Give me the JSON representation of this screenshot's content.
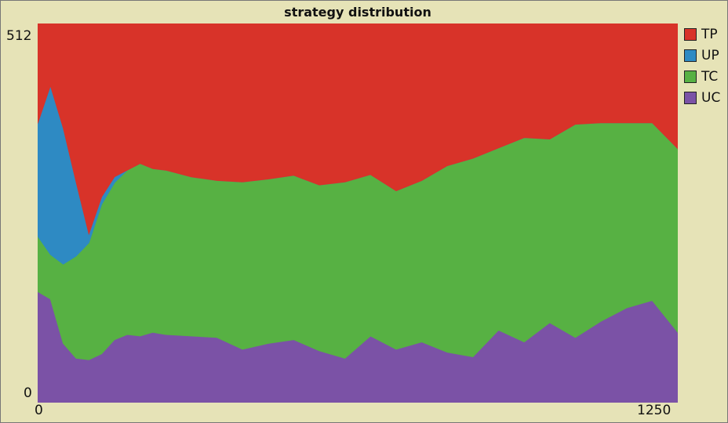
{
  "chart_data": {
    "type": "area",
    "stacked": true,
    "title": "strategy distribution",
    "xlabel": "",
    "ylabel": "",
    "xlim": [
      0,
      1250
    ],
    "ylim": [
      0,
      512
    ],
    "x_tick_labels": [
      "0",
      "1250"
    ],
    "y_tick_labels": [
      "0",
      "512"
    ],
    "legend_position": "right",
    "x": [
      0,
      25,
      50,
      75,
      100,
      125,
      150,
      175,
      200,
      225,
      250,
      300,
      350,
      400,
      450,
      500,
      550,
      600,
      650,
      700,
      750,
      800,
      850,
      900,
      950,
      1000,
      1050,
      1100,
      1150,
      1200,
      1250
    ],
    "series": [
      {
        "name": "UC",
        "color": "#7b52a6",
        "values": [
          150,
          140,
          80,
          60,
          58,
          66,
          85,
          92,
          90,
          95,
          92,
          90,
          88,
          72,
          80,
          85,
          70,
          60,
          90,
          72,
          82,
          68,
          62,
          98,
          82,
          108,
          88,
          110,
          128,
          138,
          95
        ]
      },
      {
        "name": "TC",
        "color": "#57b143",
        "values": [
          75,
          60,
          107,
          138,
          158,
          202,
          212,
          222,
          233,
          221,
          222,
          215,
          212,
          226,
          222,
          222,
          224,
          238,
          218,
          214,
          218,
          252,
          268,
          246,
          276,
          248,
          288,
          268,
          250,
          240,
          248
        ]
      },
      {
        "name": "UP",
        "color": "#2e8ac3",
        "values": [
          152,
          228,
          184,
          100,
          12,
          10,
          8,
          0,
          0,
          0,
          0,
          0,
          0,
          0,
          0,
          0,
          0,
          0,
          0,
          0,
          0,
          0,
          0,
          0,
          0,
          0,
          0,
          0,
          0,
          0,
          0
        ]
      },
      {
        "name": "TP",
        "color": "#d83329",
        "values": [
          135,
          84,
          141,
          214,
          284,
          234,
          207,
          198,
          189,
          196,
          198,
          207,
          212,
          214,
          210,
          205,
          218,
          214,
          204,
          226,
          212,
          192,
          182,
          168,
          154,
          156,
          136,
          134,
          134,
          134,
          169
        ]
      }
    ]
  }
}
